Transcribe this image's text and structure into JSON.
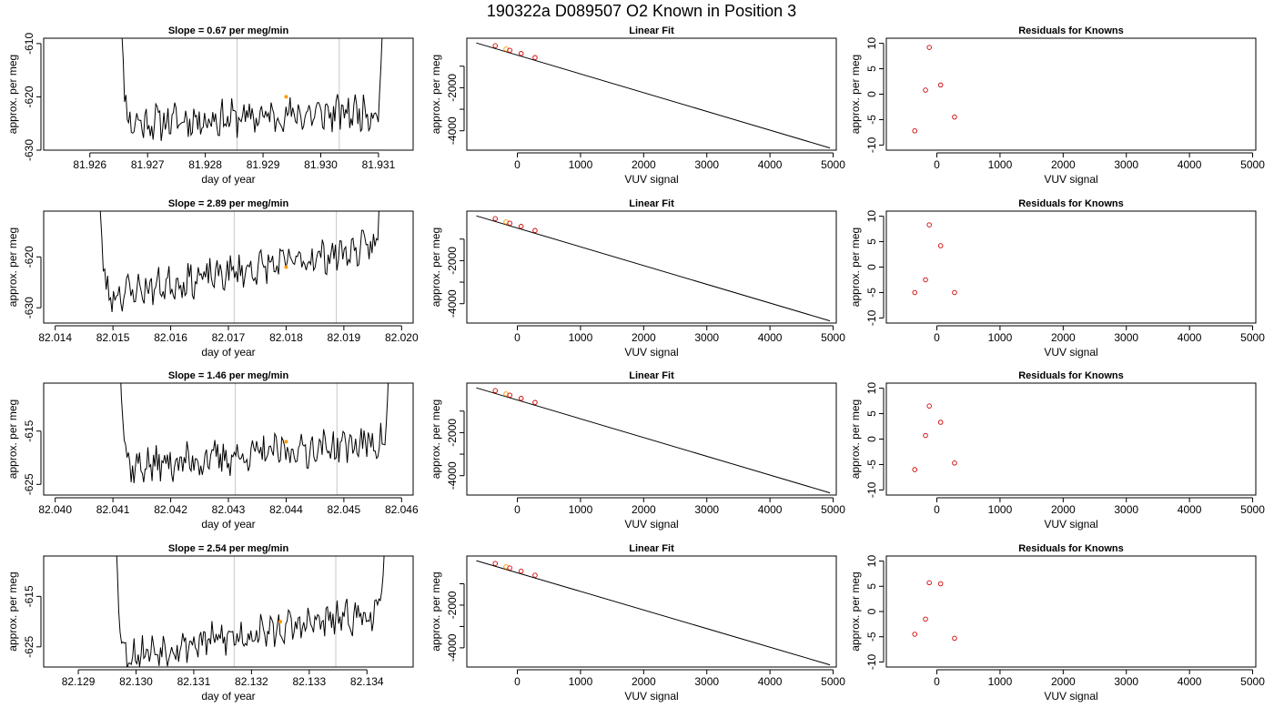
{
  "page_title": "190322a     D089507   O2 Known in Position  3",
  "chart_data": [
    {
      "type": "line",
      "panel": "timeseries",
      "row": 0,
      "title": "Slope =  0.67  per meg/min",
      "xlabel": "day of year",
      "ylabel": "approx. per meg",
      "xlim": [
        81.9252,
        81.9316
      ],
      "ylim": [
        -630,
        -609
      ],
      "xticks": [
        81.926,
        81.927,
        81.928,
        81.929,
        81.93,
        81.931
      ],
      "xtick_labels": [
        "81.926",
        "81.927",
        "81.928",
        "81.929",
        "81.930",
        "81.931"
      ],
      "yticks": [
        -630,
        -620,
        -610
      ],
      "ytick_labels": [
        "-630",
        "-620",
        "-610"
      ],
      "vlines": [
        81.92855,
        81.93032
      ],
      "t_start": 81.92646,
      "t_end": 81.93116,
      "base": -625,
      "drift": 0.67,
      "seed": 11,
      "highlight_x": 81.9294,
      "highlight_y": -620
    },
    {
      "type": "scatter",
      "panel": "linear-fit",
      "row": 0,
      "title": "Linear Fit",
      "xlabel": "VUV signal",
      "ylabel": "approx. per meg",
      "xlim": [
        -800,
        5050
      ],
      "ylim": [
        -4900,
        300
      ],
      "xticks": [
        0,
        1000,
        2000,
        3000,
        4000,
        5000
      ],
      "xtick_labels": [
        "0",
        "1000",
        "2000",
        "3000",
        "4000",
        "5000"
      ],
      "yticks": [
        -4000,
        -3000,
        -2000,
        -1000
      ],
      "ytick_labels": [
        "-4000",
        "",
        "-2000",
        ""
      ],
      "points_x": [
        -350,
        -180,
        -120,
        60,
        280
      ],
      "points_y": [
        -50,
        -200,
        -260,
        -410,
        -600
      ],
      "highlight_index": 1,
      "line_x": [
        -650,
        4950
      ],
      "line_y": [
        80,
        -4800
      ]
    },
    {
      "type": "scatter",
      "panel": "residuals",
      "row": 0,
      "title": "Residuals for Knowns",
      "xlabel": "VUV signal",
      "ylabel": "approx. per meg",
      "xlim": [
        -800,
        5050
      ],
      "ylim": [
        -11,
        11
      ],
      "xticks": [
        0,
        1000,
        2000,
        3000,
        4000,
        5000
      ],
      "xtick_labels": [
        "0",
        "1000",
        "2000",
        "3000",
        "4000",
        "5000"
      ],
      "yticks": [
        -10,
        -5,
        0,
        5,
        10
      ],
      "ytick_labels": [
        "-10",
        "-5",
        "0",
        "5",
        "10"
      ],
      "points_x": [
        -350,
        -180,
        -120,
        60,
        280
      ],
      "points_y": [
        -7.2,
        0.8,
        9.2,
        1.8,
        -4.5
      ]
    },
    {
      "type": "line",
      "panel": "timeseries",
      "row": 1,
      "title": "Slope =  2.89  per meg/min",
      "xlabel": "day of year",
      "ylabel": "approx. per meg",
      "xlim": [
        82.0138,
        82.0202
      ],
      "ylim": [
        -633,
        -611
      ],
      "xticks": [
        82.014,
        82.015,
        82.016,
        82.017,
        82.018,
        82.019,
        82.02
      ],
      "xtick_labels": [
        "82.014",
        "82.015",
        "82.016",
        "82.017",
        "82.018",
        "82.019",
        "82.020"
      ],
      "yticks": [
        -630,
        -620
      ],
      "ytick_labels": [
        "-630",
        "-620"
      ],
      "vlines": [
        82.0171,
        82.01887
      ],
      "t_start": 82.01468,
      "t_end": 82.01974,
      "base": -628,
      "drift": 2.89,
      "seed": 23,
      "highlight_x": 82.018,
      "highlight_y": -622
    },
    {
      "type": "scatter",
      "panel": "linear-fit",
      "row": 1,
      "title": "Linear Fit",
      "xlabel": "VUV signal",
      "ylabel": "approx. per meg",
      "xlim": [
        -800,
        5050
      ],
      "ylim": [
        -4900,
        300
      ],
      "xticks": [
        0,
        1000,
        2000,
        3000,
        4000,
        5000
      ],
      "xtick_labels": [
        "0",
        "1000",
        "2000",
        "3000",
        "4000",
        "5000"
      ],
      "yticks": [
        -4000,
        -3000,
        -2000,
        -1000
      ],
      "ytick_labels": [
        "-4000",
        "",
        "-2000",
        ""
      ],
      "points_x": [
        -350,
        -180,
        -120,
        60,
        280
      ],
      "points_y": [
        -50,
        -200,
        -260,
        -410,
        -600
      ],
      "highlight_index": 1,
      "line_x": [
        -650,
        4950
      ],
      "line_y": [
        80,
        -4800
      ]
    },
    {
      "type": "scatter",
      "panel": "residuals",
      "row": 1,
      "title": "Residuals for Knowns",
      "xlabel": "VUV signal",
      "ylabel": "approx. per meg",
      "xlim": [
        -800,
        5050
      ],
      "ylim": [
        -11,
        11
      ],
      "xticks": [
        0,
        1000,
        2000,
        3000,
        4000,
        5000
      ],
      "xtick_labels": [
        "0",
        "1000",
        "2000",
        "3000",
        "4000",
        "5000"
      ],
      "yticks": [
        -10,
        -5,
        0,
        5,
        10
      ],
      "ytick_labels": [
        "-10",
        "-5",
        "0",
        "5",
        "10"
      ],
      "points_x": [
        -350,
        -180,
        -120,
        60,
        280
      ],
      "points_y": [
        -5.0,
        -2.5,
        8.3,
        4.2,
        -5.0
      ]
    },
    {
      "type": "line",
      "panel": "timeseries",
      "row": 2,
      "title": "Slope =  1.46  per meg/min",
      "xlabel": "day of year",
      "ylabel": "approx. per meg",
      "xlim": [
        82.0398,
        82.0462
      ],
      "ylim": [
        -627,
        -606
      ],
      "xticks": [
        82.04,
        82.041,
        82.042,
        82.043,
        82.044,
        82.045,
        82.046
      ],
      "xtick_labels": [
        "82.040",
        "82.041",
        "82.042",
        "82.043",
        "82.044",
        "82.045",
        "82.046"
      ],
      "yticks": [
        -625,
        -615
      ],
      "ytick_labels": [
        "-625",
        "-615"
      ],
      "vlines": [
        82.04312,
        82.04488
      ],
      "t_start": 82.04105,
      "t_end": 82.04588,
      "base": -622,
      "drift": 1.46,
      "seed": 37,
      "highlight_x": 82.044,
      "highlight_y": -617
    },
    {
      "type": "scatter",
      "panel": "linear-fit",
      "row": 2,
      "title": "Linear Fit",
      "xlabel": "VUV signal",
      "ylabel": "approx. per meg",
      "xlim": [
        -800,
        5050
      ],
      "ylim": [
        -4900,
        300
      ],
      "xticks": [
        0,
        1000,
        2000,
        3000,
        4000,
        5000
      ],
      "xtick_labels": [
        "0",
        "1000",
        "2000",
        "3000",
        "4000",
        "5000"
      ],
      "yticks": [
        -4000,
        -3000,
        -2000,
        -1000
      ],
      "ytick_labels": [
        "-4000",
        "",
        "-2000",
        ""
      ],
      "points_x": [
        -350,
        -180,
        -120,
        60,
        280
      ],
      "points_y": [
        -50,
        -200,
        -260,
        -410,
        -600
      ],
      "highlight_index": 1,
      "line_x": [
        -650,
        4950
      ],
      "line_y": [
        80,
        -4800
      ]
    },
    {
      "type": "scatter",
      "panel": "residuals",
      "row": 2,
      "title": "Residuals for Knowns",
      "xlabel": "VUV signal",
      "ylabel": "approx. per meg",
      "xlim": [
        -800,
        5050
      ],
      "ylim": [
        -11,
        11
      ],
      "xticks": [
        0,
        1000,
        2000,
        3000,
        4000,
        5000
      ],
      "xtick_labels": [
        "0",
        "1000",
        "2000",
        "3000",
        "4000",
        "5000"
      ],
      "yticks": [
        -10,
        -5,
        0,
        5,
        10
      ],
      "ytick_labels": [
        "-10",
        "-5",
        "0",
        "5",
        "10"
      ],
      "points_x": [
        -350,
        -180,
        -120,
        60,
        280
      ],
      "points_y": [
        -6.0,
        0.7,
        6.5,
        3.3,
        -4.7
      ]
    },
    {
      "type": "line",
      "panel": "timeseries",
      "row": 3,
      "title": "Slope =  2.54  per meg/min",
      "xlabel": "day of year",
      "ylabel": "approx. per meg",
      "xlim": [
        82.1284,
        82.1348
      ],
      "ylim": [
        -629,
        -607
      ],
      "xticks": [
        82.129,
        82.13,
        82.131,
        82.132,
        82.133,
        82.134
      ],
      "xtick_labels": [
        "82.129",
        "82.130",
        "82.131",
        "82.132",
        "82.133",
        "82.134"
      ],
      "yticks": [
        -625,
        -615
      ],
      "ytick_labels": [
        "-625",
        "-615"
      ],
      "vlines": [
        82.1317,
        82.13346
      ],
      "t_start": 82.12958,
      "t_end": 82.1344,
      "base": -627,
      "drift": 2.54,
      "seed": 53,
      "highlight_x": 82.1325,
      "highlight_y": -620
    },
    {
      "type": "scatter",
      "panel": "linear-fit",
      "row": 3,
      "title": "Linear Fit",
      "xlabel": "VUV signal",
      "ylabel": "approx. per meg",
      "xlim": [
        -800,
        5050
      ],
      "ylim": [
        -4900,
        300
      ],
      "xticks": [
        0,
        1000,
        2000,
        3000,
        4000,
        5000
      ],
      "xtick_labels": [
        "0",
        "1000",
        "2000",
        "3000",
        "4000",
        "5000"
      ],
      "yticks": [
        -4000,
        -3000,
        -2000,
        -1000
      ],
      "ytick_labels": [
        "-4000",
        "",
        "-2000",
        ""
      ],
      "points_x": [
        -350,
        -180,
        -120,
        60,
        280
      ],
      "points_y": [
        -50,
        -200,
        -260,
        -410,
        -600
      ],
      "highlight_index": 1,
      "line_x": [
        -650,
        4950
      ],
      "line_y": [
        80,
        -4800
      ]
    },
    {
      "type": "scatter",
      "panel": "residuals",
      "row": 3,
      "title": "Residuals for Knowns",
      "xlabel": "VUV signal",
      "ylabel": "approx. per meg",
      "xlim": [
        -800,
        5050
      ],
      "ylim": [
        -11,
        11
      ],
      "xticks": [
        0,
        1000,
        2000,
        3000,
        4000,
        5000
      ],
      "xtick_labels": [
        "0",
        "1000",
        "2000",
        "3000",
        "4000",
        "5000"
      ],
      "yticks": [
        -10,
        -5,
        0,
        5,
        10
      ],
      "ytick_labels": [
        "-10",
        "-5",
        "0",
        "5",
        "10"
      ],
      "points_x": [
        -350,
        -180,
        -120,
        60,
        280
      ],
      "points_y": [
        -4.5,
        -1.5,
        5.7,
        5.5,
        -5.3
      ]
    }
  ],
  "colors": {
    "line": "#000000",
    "highlight": "#ff9900",
    "residual_point": "#cc0000",
    "fit_point": "#cc0000",
    "vline": "#c8c8c8",
    "axis": "#000000"
  }
}
